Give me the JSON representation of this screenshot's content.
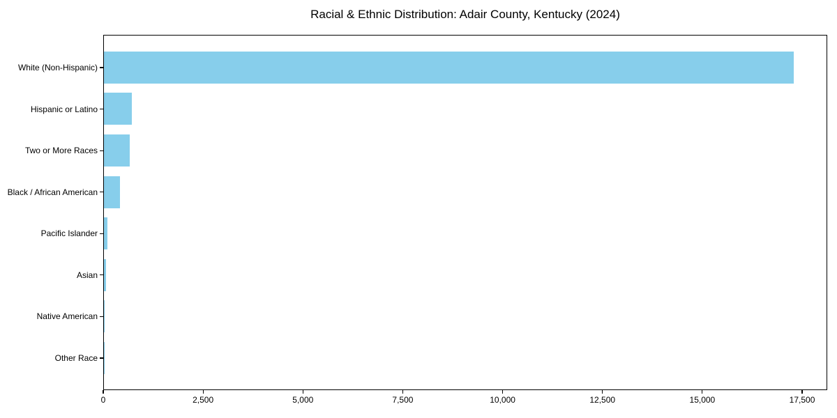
{
  "chart_data": {
    "type": "bar",
    "orientation": "horizontal",
    "title": "Racial & Ethnic Distribution: Adair County, Kentucky (2024)",
    "categories": [
      "White (Non-Hispanic)",
      "Hispanic or Latino",
      "Two or More Races",
      "Black / African American",
      "Pacific Islander",
      "Asian",
      "Native American",
      "Other Race"
    ],
    "values": [
      17265,
      690,
      650,
      400,
      80,
      55,
      15,
      5
    ],
    "xlabel": "",
    "ylabel": "",
    "xlim": [
      0,
      18128
    ],
    "x_ticks": [
      0,
      2500,
      5000,
      7500,
      10000,
      12500,
      15000,
      17500
    ],
    "x_tick_labels": [
      "0",
      "2,500",
      "5,000",
      "7,500",
      "10,000",
      "12,500",
      "15,000",
      "17,500"
    ],
    "bar_color": "#87CEEB",
    "axis_color": "#000000",
    "text_color": "#000000",
    "background_color": "#FFFFFF",
    "grid": false,
    "legend": null
  }
}
